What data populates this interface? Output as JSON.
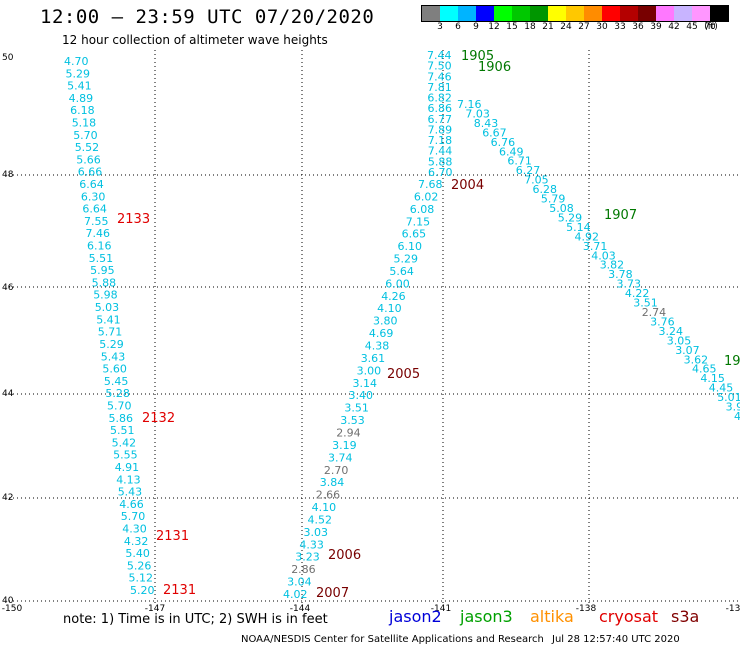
{
  "header": {
    "title": "12:00 – 23:59 UTC 07/20/2020",
    "subtitle": "12 hour collection of altimeter wave heights"
  },
  "color_scale": {
    "colors": [
      "#7f7f7f",
      "#00ffff",
      "#00b4ff",
      "#0000ff",
      "#00ff00",
      "#00c800",
      "#009600",
      "#ffff00",
      "#ffc800",
      "#ff8c00",
      "#ff0000",
      "#b40000",
      "#780000",
      "#ff78ff",
      "#c8b4ff",
      "#ff96ff",
      "#000000"
    ],
    "labels": [
      "3",
      "6",
      "9",
      "12",
      "15",
      "18",
      "21",
      "24",
      "27",
      "30",
      "33",
      "36",
      "39",
      "42",
      "45",
      "70",
      "(ft)"
    ]
  },
  "map": {
    "x_ticks": [
      "-150",
      "-147",
      "-144",
      "-141",
      "-138",
      "-13"
    ],
    "y_ticks": [
      "50",
      "48",
      "46",
      "44",
      "42",
      "40"
    ],
    "tracks": [
      {
        "id": "2133",
        "color": "#00c0e0",
        "heights": [
          "4.70",
          "5.29",
          "5.41",
          "4.89",
          "6.18",
          "5.18",
          "5.70",
          "5.52",
          "5.66",
          "6.66",
          "6.64",
          "6.30",
          "6.64",
          "7.55",
          "7.46",
          "6.16",
          "5.51",
          "5.95",
          "5.88",
          "5.98",
          "5.03",
          "5.41",
          "5.71",
          "5.29",
          "5.43",
          "5.60",
          "5.45",
          "5.28",
          "5.70",
          "5.86",
          "5.51",
          "5.42",
          "5.55",
          "4.91",
          "4.13",
          "5.43",
          "4.66",
          "5.70",
          "4.30",
          "4.32",
          "5.40",
          "5.26",
          "5.12",
          "5.20"
        ]
      },
      {
        "id": "2006",
        "color": "#00c0e0",
        "heights": [
          "7.68",
          "6.02",
          "6.08",
          "7.15",
          "6.65",
          "6.10",
          "5.29",
          "5.64",
          "6.00",
          "4.26",
          "4.10",
          "3.80",
          "4.69",
          "4.38",
          "3.61",
          "3.00",
          "3.14",
          "3.40",
          "3.51",
          "3.53",
          "2.94",
          "3.19",
          "3.74",
          "2.70",
          "3.84",
          "2.66",
          "4.10",
          "4.52",
          "3.03",
          "4.33",
          "3.23",
          "2.86",
          "3.04",
          "4.02"
        ]
      },
      {
        "id": "1905",
        "color": "#00c0e0",
        "heights": [
          "7.44",
          "7.50",
          "7.46",
          "7.81",
          "6.82",
          "6.86",
          "6.77",
          "7.89",
          "7.18",
          "7.44",
          "5.88",
          "6.70"
        ]
      },
      {
        "id": "1906",
        "color": "#00c0e0",
        "heights": [
          "7.16",
          "7.03",
          "8.43",
          "6.67",
          "6.76",
          "6.49",
          "6.71",
          "6.27",
          "7.05",
          "6.28",
          "5.79",
          "5.08",
          "5.29",
          "5.14",
          "4.92",
          "3.71",
          "4.03",
          "3.82",
          "3.78",
          "3.73",
          "4.22",
          "3.51",
          "2.74",
          "3.76",
          "3.24",
          "3.05",
          "3.07",
          "3.62",
          "4.65",
          "4.15",
          "4.45",
          "5.01",
          "3.9",
          "4"
        ]
      }
    ],
    "labels": [
      {
        "text": "2133",
        "color": "#e00000"
      },
      {
        "text": "2132",
        "color": "#e00000"
      },
      {
        "text": "2131",
        "color": "#e00000"
      },
      {
        "text": "2131",
        "color": "#e00000"
      },
      {
        "text": "1905",
        "color": "#007800"
      },
      {
        "text": "1906",
        "color": "#007800"
      },
      {
        "text": "2004",
        "color": "#780000"
      },
      {
        "text": "1907",
        "color": "#007800"
      },
      {
        "text": "19",
        "color": "#007800"
      },
      {
        "text": "2005",
        "color": "#780000"
      },
      {
        "text": "2006",
        "color": "#780000"
      },
      {
        "text": "2007",
        "color": "#780000"
      }
    ]
  },
  "footer": {
    "note": "note:  1) Time is in UTC;  2) SWH is in feet",
    "legend": [
      {
        "text": "jason2",
        "color": "#0000d8"
      },
      {
        "text": "jason3",
        "color": "#00a000"
      },
      {
        "text": "altika",
        "color": "#ff9000"
      },
      {
        "text": "cryosat",
        "color": "#e00000"
      },
      {
        "text": "s3a",
        "color": "#800000"
      }
    ],
    "credit": "NOAA/NESDIS Center for Satellite Applications and Research",
    "timestamp": "Jul 28 12:57:40 UTC 2020"
  }
}
